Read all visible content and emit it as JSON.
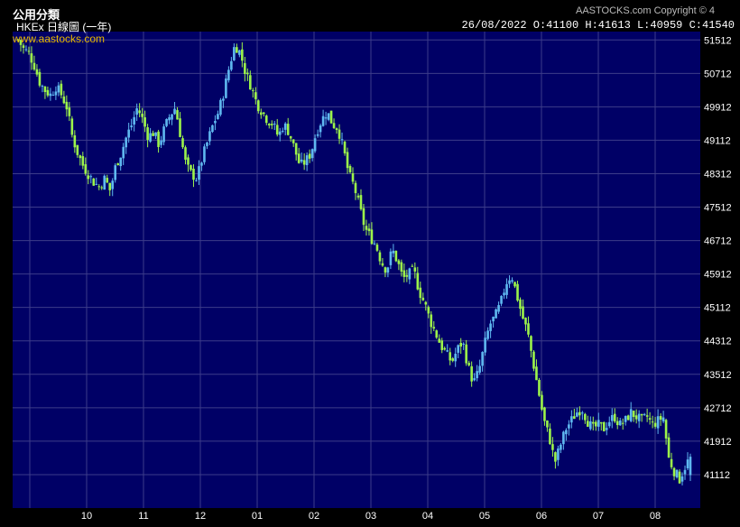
{
  "header": {
    "title": "公用分類",
    "subtitle": "HKEx 日線圖 (一年)",
    "watermark": "www.aastocks.com",
    "copyright": "AASTOCKS.com Copyright © 4",
    "quote": "26/08/2022   O:41100  H:41613  L:40959  C:41540"
  },
  "colors": {
    "background": "#000066",
    "grid": "#3c3c8a",
    "up": "#5fb8f0",
    "down": "#9cf44a",
    "axis_text": "#ffffff"
  },
  "chart_data": {
    "type": "candlestick",
    "title": "公用分類",
    "x_ticks": [
      "10",
      "11",
      "12",
      "01",
      "02",
      "03",
      "04",
      "05",
      "06",
      "07",
      "08"
    ],
    "y_ticks": [
      51512,
      50712,
      49912,
      49112,
      48312,
      47512,
      46712,
      45912,
      45112,
      44312,
      43512,
      42712,
      41912,
      41112
    ],
    "ylim": [
      40312,
      51712
    ],
    "grid": true,
    "last_candle": {
      "date": "26/08/2022",
      "open": 41100,
      "high": 41613,
      "low": 40959,
      "close": 41540
    },
    "close_trend": [
      51512,
      51300,
      51200,
      50900,
      50500,
      50300,
      50200,
      50400,
      50200,
      49900,
      49200,
      48800,
      48500,
      48300,
      48100,
      48000,
      48200,
      47900,
      48500,
      48800,
      49200,
      49500,
      49900,
      49600,
      49200,
      49300,
      49000,
      49400,
      49700,
      49900,
      49200,
      48500,
      48300,
      48200,
      48700,
      49100,
      49500,
      49800,
      50300,
      50900,
      51400,
      51200,
      50700,
      50400,
      50000,
      49800,
      49600,
      49500,
      49200,
      49500,
      49300,
      48900,
      48500,
      48600,
      48800,
      49300,
      49600,
      49800,
      49500,
      49400,
      48900,
      48300,
      48000,
      47500,
      47000,
      46800,
      46600,
      46200,
      46000,
      46500,
      46200,
      45800,
      45900,
      46000,
      45500,
      45200,
      44800,
      44500,
      44200,
      44000,
      43800,
      44100,
      44300,
      43700,
      43300,
      43600,
      44200,
      44700,
      44900,
      45200,
      45700,
      45900,
      45400,
      44900,
      44500,
      43800,
      43100,
      42400,
      42000,
      41400,
      41800,
      42200,
      42400,
      42600,
      42700,
      42400,
      42200,
      42300,
      42200,
      42400,
      42500,
      42300,
      42400,
      42600,
      42500,
      42400,
      42500,
      42300,
      42400,
      42500,
      41500,
      41200,
      41000,
      41300,
      41540
    ]
  }
}
